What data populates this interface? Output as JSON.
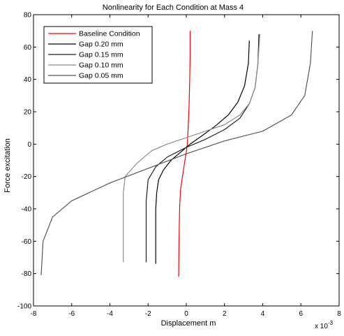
{
  "chart_data": {
    "type": "line",
    "title": "Nonlinearity for Each Condition at Mass 4",
    "xlabel": "Displacement m",
    "ylabel": "Force excitation",
    "x_multiplier_label": "x 10",
    "x_multiplier_exponent": "-3",
    "x_scale_factor": 0.001,
    "xlim": [
      -8,
      8
    ],
    "ylim": [
      -100,
      80
    ],
    "xticks": [
      -8,
      -6,
      -4,
      -2,
      0,
      2,
      4,
      6,
      8
    ],
    "yticks": [
      -100,
      -80,
      -60,
      -40,
      -20,
      0,
      20,
      40,
      60,
      80
    ],
    "xtick_labels": [
      "-8",
      "-6",
      "-4",
      "-2",
      "0",
      "2",
      "4",
      "6",
      "8"
    ],
    "ytick_labels": [
      "-100",
      "-80",
      "-60",
      "-40",
      "-20",
      "0",
      "20",
      "40",
      "60",
      "80"
    ],
    "grid": false,
    "legend_position": "top-left",
    "series": [
      {
        "name": "Baseline Condition",
        "color": "#ff0000",
        "points": [
          [
            -0.4,
            -82
          ],
          [
            -0.38,
            -60
          ],
          [
            -0.35,
            -40
          ],
          [
            -0.3,
            -28
          ],
          [
            -0.2,
            -20
          ],
          [
            -0.1,
            -12
          ],
          [
            0,
            -5
          ],
          [
            0.05,
            0
          ],
          [
            0.1,
            10
          ],
          [
            0.15,
            25
          ],
          [
            0.18,
            40
          ],
          [
            0.2,
            55
          ],
          [
            0.2,
            70
          ]
        ]
      },
      {
        "name": "Gap 0.20 mm",
        "color": "#000000",
        "points": [
          [
            -1.6,
            -74
          ],
          [
            -1.6,
            -40
          ],
          [
            -1.55,
            -30
          ],
          [
            -1.45,
            -22
          ],
          [
            -1.2,
            -16
          ],
          [
            -0.8,
            -10
          ],
          [
            -0.3,
            -5
          ],
          [
            0.2,
            0
          ],
          [
            0.8,
            5
          ],
          [
            1.5,
            11
          ],
          [
            2.2,
            18
          ],
          [
            2.7,
            26
          ],
          [
            3.05,
            36
          ],
          [
            3.25,
            50
          ],
          [
            3.3,
            64
          ]
        ]
      },
      {
        "name": "Gap 0.15 mm",
        "color": "#1e1e1e",
        "points": [
          [
            -2.1,
            -73
          ],
          [
            -2.1,
            -35
          ],
          [
            -2.0,
            -22
          ],
          [
            -1.6,
            -14
          ],
          [
            -1.0,
            -8
          ],
          [
            0,
            -2
          ],
          [
            1.0,
            3
          ],
          [
            2.0,
            9
          ],
          [
            2.8,
            16
          ],
          [
            3.3,
            25
          ],
          [
            3.6,
            35
          ],
          [
            3.75,
            50
          ],
          [
            3.8,
            68
          ]
        ]
      },
      {
        "name": "Gap 0.10 mm",
        "color": "#8c8c8c",
        "points": [
          [
            -3.3,
            -73
          ],
          [
            -3.3,
            -30
          ],
          [
            -3.2,
            -20
          ],
          [
            -2.6,
            -12
          ],
          [
            -1.8,
            -4
          ],
          [
            -1.0,
            0
          ],
          [
            0,
            4
          ],
          [
            1.0,
            8
          ],
          [
            2.0,
            12
          ],
          [
            2.8,
            18
          ],
          [
            3.3,
            25
          ],
          [
            3.6,
            35
          ],
          [
            3.75,
            50
          ],
          [
            3.85,
            68
          ]
        ]
      },
      {
        "name": "Gap 0.05 mm",
        "color": "#555555",
        "points": [
          [
            -7.6,
            -81
          ],
          [
            -7.5,
            -60
          ],
          [
            -7.0,
            -45
          ],
          [
            -6.0,
            -35
          ],
          [
            -4.0,
            -24
          ],
          [
            -2.0,
            -15
          ],
          [
            0,
            -6
          ],
          [
            2.0,
            2
          ],
          [
            4.0,
            8
          ],
          [
            5.5,
            18
          ],
          [
            6.2,
            30
          ],
          [
            6.5,
            50
          ],
          [
            6.6,
            70
          ]
        ]
      }
    ]
  }
}
